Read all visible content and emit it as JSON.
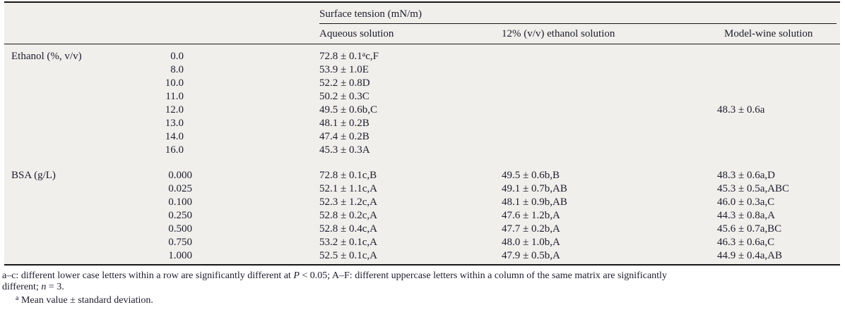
{
  "colors": {
    "table_background": "#f0efeb",
    "text": "#1c1c2e",
    "rule": "#161616",
    "page_background": "#ffffff"
  },
  "table": {
    "group_header": "Surface tension (mN/m)",
    "columns": [
      "Aqueous solution",
      "12% (v/v) ethanol solution",
      "Model-wine solution"
    ],
    "sections": [
      {
        "label": "Ethanol (%, v/v)",
        "rows": [
          {
            "dose": "0.0",
            "aq": "72.8 ± 0.1",
            "aq_sup": "a",
            "aq_post": "c,F"
          },
          {
            "dose": "8.0",
            "aq": "53.9 ± 1.0E"
          },
          {
            "dose": "10.0",
            "aq": "52.2 ± 0.8D"
          },
          {
            "dose": "11.0",
            "aq": "50.2 ± 0.3C"
          },
          {
            "dose": "12.0",
            "aq": "49.5 ± 0.6b,C",
            "wine": "48.3 ± 0.6a"
          },
          {
            "dose": "13.0",
            "aq": "48.1 ± 0.2B"
          },
          {
            "dose": "14.0",
            "aq": "47.4 ± 0.2B"
          },
          {
            "dose": "16.0",
            "aq": "45.3 ± 0.3A"
          }
        ]
      },
      {
        "label": "BSA (g/L)",
        "rows": [
          {
            "dose": "0.000",
            "aq": "72.8 ± 0.1c,B",
            "eth": "49.5 ± 0.6b,B",
            "wine": "48.3 ± 0.6a,D"
          },
          {
            "dose": "0.025",
            "aq": "52.1 ± 1.1c,A",
            "eth": "49.1 ± 0.7b,AB",
            "wine": "45.3 ± 0.5a,ABC"
          },
          {
            "dose": "0.100",
            "aq": "52.3 ± 1.2c,A",
            "eth": "48.1 ± 0.9b,AB",
            "wine": "46.0 ± 0.3a,C"
          },
          {
            "dose": "0.250",
            "aq": "52.8 ± 0.2c,A",
            "eth": "47.6 ± 1.2b,A",
            "wine": "44.3 ± 0.8a,A"
          },
          {
            "dose": "0.500",
            "aq": "52.8 ± 0.4c,A",
            "eth": "47.7 ± 0.2b,A",
            "wine": "45.6 ± 0.7a,BC"
          },
          {
            "dose": "0.750",
            "aq": "53.2 ± 0.1c,A",
            "eth": "48.0 ± 1.0b,A",
            "wine": "46.3 ± 0.6a,C"
          },
          {
            "dose": "1.000",
            "aq": "52.5 ± 0.1c,A",
            "eth": "47.9 ± 0.5b,A",
            "wine": "44.9 ± 0.4a,AB"
          }
        ]
      }
    ]
  },
  "footnotes": {
    "note1_part1": "a–c: different lower case letters within a row are significantly different at ",
    "note1_p": "P",
    "note1_part2": " < 0.05; A–F: different uppercase letters within a column of the same matrix are significantly",
    "note1_part3": "different; ",
    "note1_n": "n",
    "note1_part4": " = 3.",
    "note2_marker": "a",
    "note2_text": " Mean value ± standard deviation."
  }
}
